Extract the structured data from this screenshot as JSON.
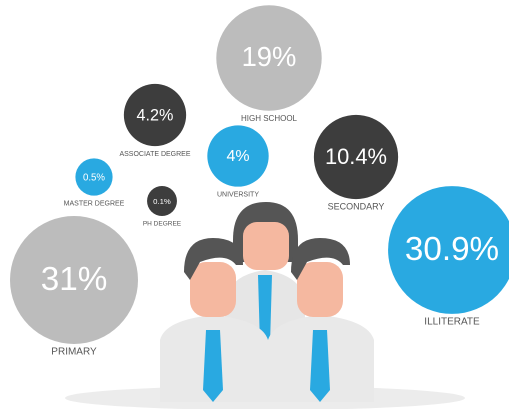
{
  "chart_data": {
    "type": "bubble",
    "categories": [
      "HIGH SCHOOL",
      "ASSOCIATE DEGREE",
      "UNIVERSITY",
      "SECONDARY",
      "MASTER DEGREE",
      "PH DEGREE",
      "PRIMARY",
      "ILLITERATE"
    ],
    "values": [
      19,
      4.2,
      4,
      10.4,
      0.5,
      0.1,
      31,
      30.9
    ],
    "value_labels": [
      "19%",
      "4.2%",
      "4%",
      "10.4%",
      "0.5%",
      "0.1%",
      "31%",
      "30.9%"
    ],
    "colors": [
      "#bcbcbc",
      "#3d3d3d",
      "#29a9e1",
      "#3d3d3d",
      "#29a9e1",
      "#3d3d3d",
      "#bcbcbc",
      "#29a9e1"
    ]
  }
}
